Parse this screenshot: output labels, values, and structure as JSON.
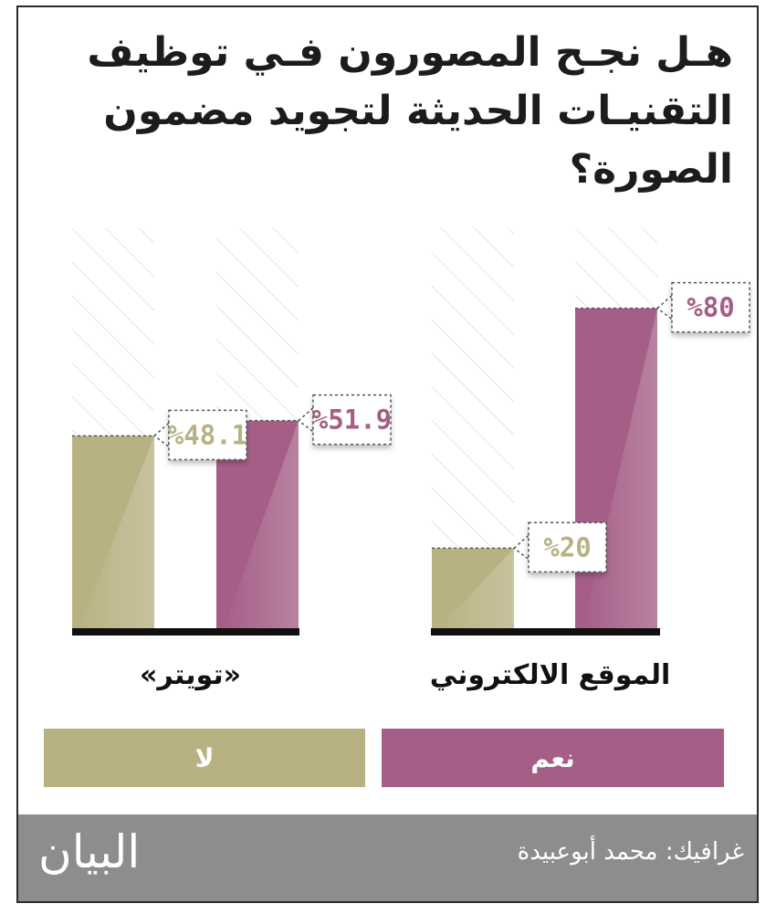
{
  "chart_data": {
    "type": "bar",
    "title": "هـل نجـح المصورون فـي توظيف التقنيـات الحديثة لتجويد مضمون الصورة؟",
    "categories": [
      "الموقع الالكتروني",
      "«تويتر»"
    ],
    "series": [
      {
        "name": "نعم",
        "color": "#a55f87",
        "values": [
          80,
          51.9
        ],
        "labels": [
          "%80",
          "%51.9"
        ]
      },
      {
        "name": "لا",
        "color": "#b8b283",
        "values": [
          20,
          48.1
        ],
        "labels": [
          "%20",
          "%48.1"
        ]
      }
    ],
    "ylim": [
      0,
      100
    ],
    "grid": false,
    "legend_position": "bottom"
  },
  "footer": {
    "credit": "غرافيك: محمد أبوعبيدة",
    "logo": "البيان"
  }
}
